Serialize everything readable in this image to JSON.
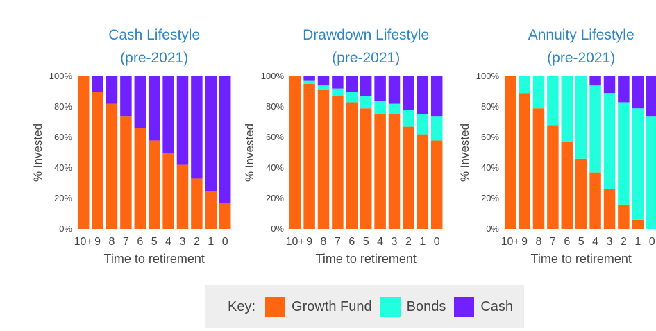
{
  "chart_data": [
    {
      "type": "bar",
      "stacked": true,
      "title": [
        "Cash Lifestyle",
        "(pre-2021)"
      ],
      "xlabel": "Time to retirement",
      "ylabel": "% Invested",
      "ylim": [
        0,
        100
      ],
      "yticks": [
        "0%",
        "20%",
        "40%",
        "60%",
        "80%",
        "100%"
      ],
      "categories": [
        "10+",
        "9",
        "8",
        "7",
        "6",
        "5",
        "4",
        "3",
        "2",
        "1",
        "0"
      ],
      "series": [
        {
          "name": "Growth Fund",
          "values": [
            100,
            90,
            82,
            74,
            66,
            58,
            50,
            42,
            33,
            25,
            17
          ]
        },
        {
          "name": "Bonds",
          "values": [
            0,
            0,
            0,
            0,
            0,
            0,
            0,
            0,
            0,
            0,
            0
          ]
        },
        {
          "name": "Cash",
          "values": [
            0,
            10,
            18,
            26,
            34,
            42,
            50,
            58,
            67,
            75,
            83
          ]
        }
      ]
    },
    {
      "type": "bar",
      "stacked": true,
      "title": [
        "Drawdown Lifestyle",
        "(pre-2021)"
      ],
      "xlabel": "Time to retirement",
      "ylabel": "% Invested",
      "ylim": [
        0,
        100
      ],
      "yticks": [
        "0%",
        "20%",
        "40%",
        "60%",
        "80%",
        "100%"
      ],
      "categories": [
        "10+",
        "9",
        "8",
        "7",
        "6",
        "5",
        "4",
        "3",
        "2",
        "1",
        "0"
      ],
      "series": [
        {
          "name": "Growth Fund",
          "values": [
            100,
            95,
            91,
            87,
            83,
            79,
            75,
            75,
            67,
            62,
            58
          ]
        },
        {
          "name": "Bonds",
          "values": [
            0,
            2,
            3,
            5,
            7,
            8,
            9,
            7,
            11,
            13,
            16
          ]
        },
        {
          "name": "Cash",
          "values": [
            0,
            3,
            6,
            8,
            10,
            13,
            16,
            18,
            22,
            25,
            26
          ]
        }
      ]
    },
    {
      "type": "bar",
      "stacked": true,
      "title": [
        "Annuity Lifestyle",
        "(pre-2021)"
      ],
      "xlabel": "Time to retirement",
      "ylabel": "% Invested",
      "ylim": [
        0,
        100
      ],
      "yticks": [
        "0%",
        "20%",
        "40%",
        "60%",
        "80%",
        "100%"
      ],
      "categories": [
        "10+",
        "9",
        "8",
        "7",
        "6",
        "5",
        "4",
        "3",
        "2",
        "1",
        "0"
      ],
      "series": [
        {
          "name": "Growth Fund",
          "values": [
            100,
            89,
            79,
            68,
            57,
            46,
            37,
            26,
            16,
            6,
            0
          ]
        },
        {
          "name": "Bonds",
          "values": [
            0,
            11,
            21,
            32,
            43,
            54,
            57,
            63,
            67,
            73,
            74
          ]
        },
        {
          "name": "Cash",
          "values": [
            0,
            0,
            0,
            0,
            0,
            0,
            6,
            11,
            17,
            21,
            26
          ]
        }
      ]
    }
  ],
  "colors": {
    "Growth Fund": "#ff6611",
    "Bonds": "#22ffdd",
    "Cash": "#6f22ff",
    "title": "#2f86c4",
    "text": "#444444"
  },
  "legend": {
    "label": "Key:",
    "items": [
      {
        "name": "Growth Fund",
        "color": "#ff6611"
      },
      {
        "name": "Bonds",
        "color": "#22ffdd"
      },
      {
        "name": "Cash",
        "color": "#6f22ff"
      }
    ]
  }
}
